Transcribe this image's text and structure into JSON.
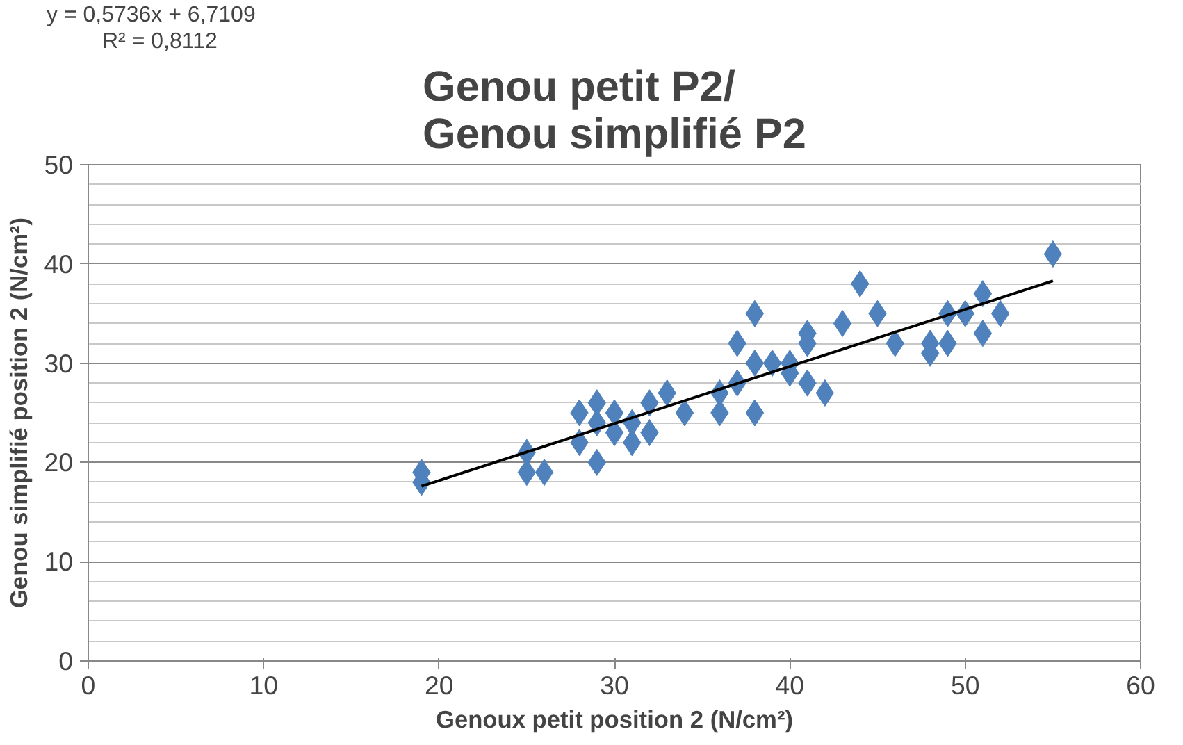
{
  "chart_data": {
    "type": "scatter",
    "title": "Genou petit P2/\nGenou simplifié P2",
    "xlabel": "Genoux petit position 2 (N/cm²)",
    "ylabel": "Genou simplifié position 2 (N/cm²)",
    "annotations": [
      "y = 0,5736x + 6,7109",
      "R² = 0,8112"
    ],
    "xlim": [
      0,
      60
    ],
    "xticks": [
      0,
      10,
      20,
      30,
      40,
      50,
      60
    ],
    "ylim": [
      0,
      50
    ],
    "yticks": [
      0,
      10,
      20,
      30,
      40,
      50
    ],
    "grid": "y",
    "marker": "diamond",
    "series": [
      {
        "color": "#4f81bd",
        "x": [
          19,
          19,
          25,
          25,
          26,
          28,
          28,
          29,
          29,
          29,
          30,
          30,
          31,
          31,
          32,
          32,
          33,
          34,
          36,
          36,
          37,
          37,
          38,
          38,
          38,
          39,
          40,
          40,
          41,
          41,
          41,
          42,
          43,
          44,
          45,
          46,
          48,
          48,
          49,
          49,
          50,
          51,
          51,
          52,
          55
        ],
        "values": [
          19,
          18,
          21,
          19,
          19,
          25,
          22,
          26,
          20,
          24,
          25,
          23,
          22,
          24,
          26,
          23,
          27,
          25,
          25,
          27,
          32,
          28,
          35,
          25,
          30,
          30,
          29,
          30,
          33,
          32,
          28,
          27,
          34,
          38,
          35,
          32,
          31,
          32,
          35,
          32,
          35,
          37,
          33,
          35,
          41
        ]
      },
      {
        "type": "line",
        "color": "#000000",
        "marker": "none",
        "x": [
          19,
          55
        ],
        "values": [
          17.6,
          38.3
        ]
      }
    ]
  }
}
